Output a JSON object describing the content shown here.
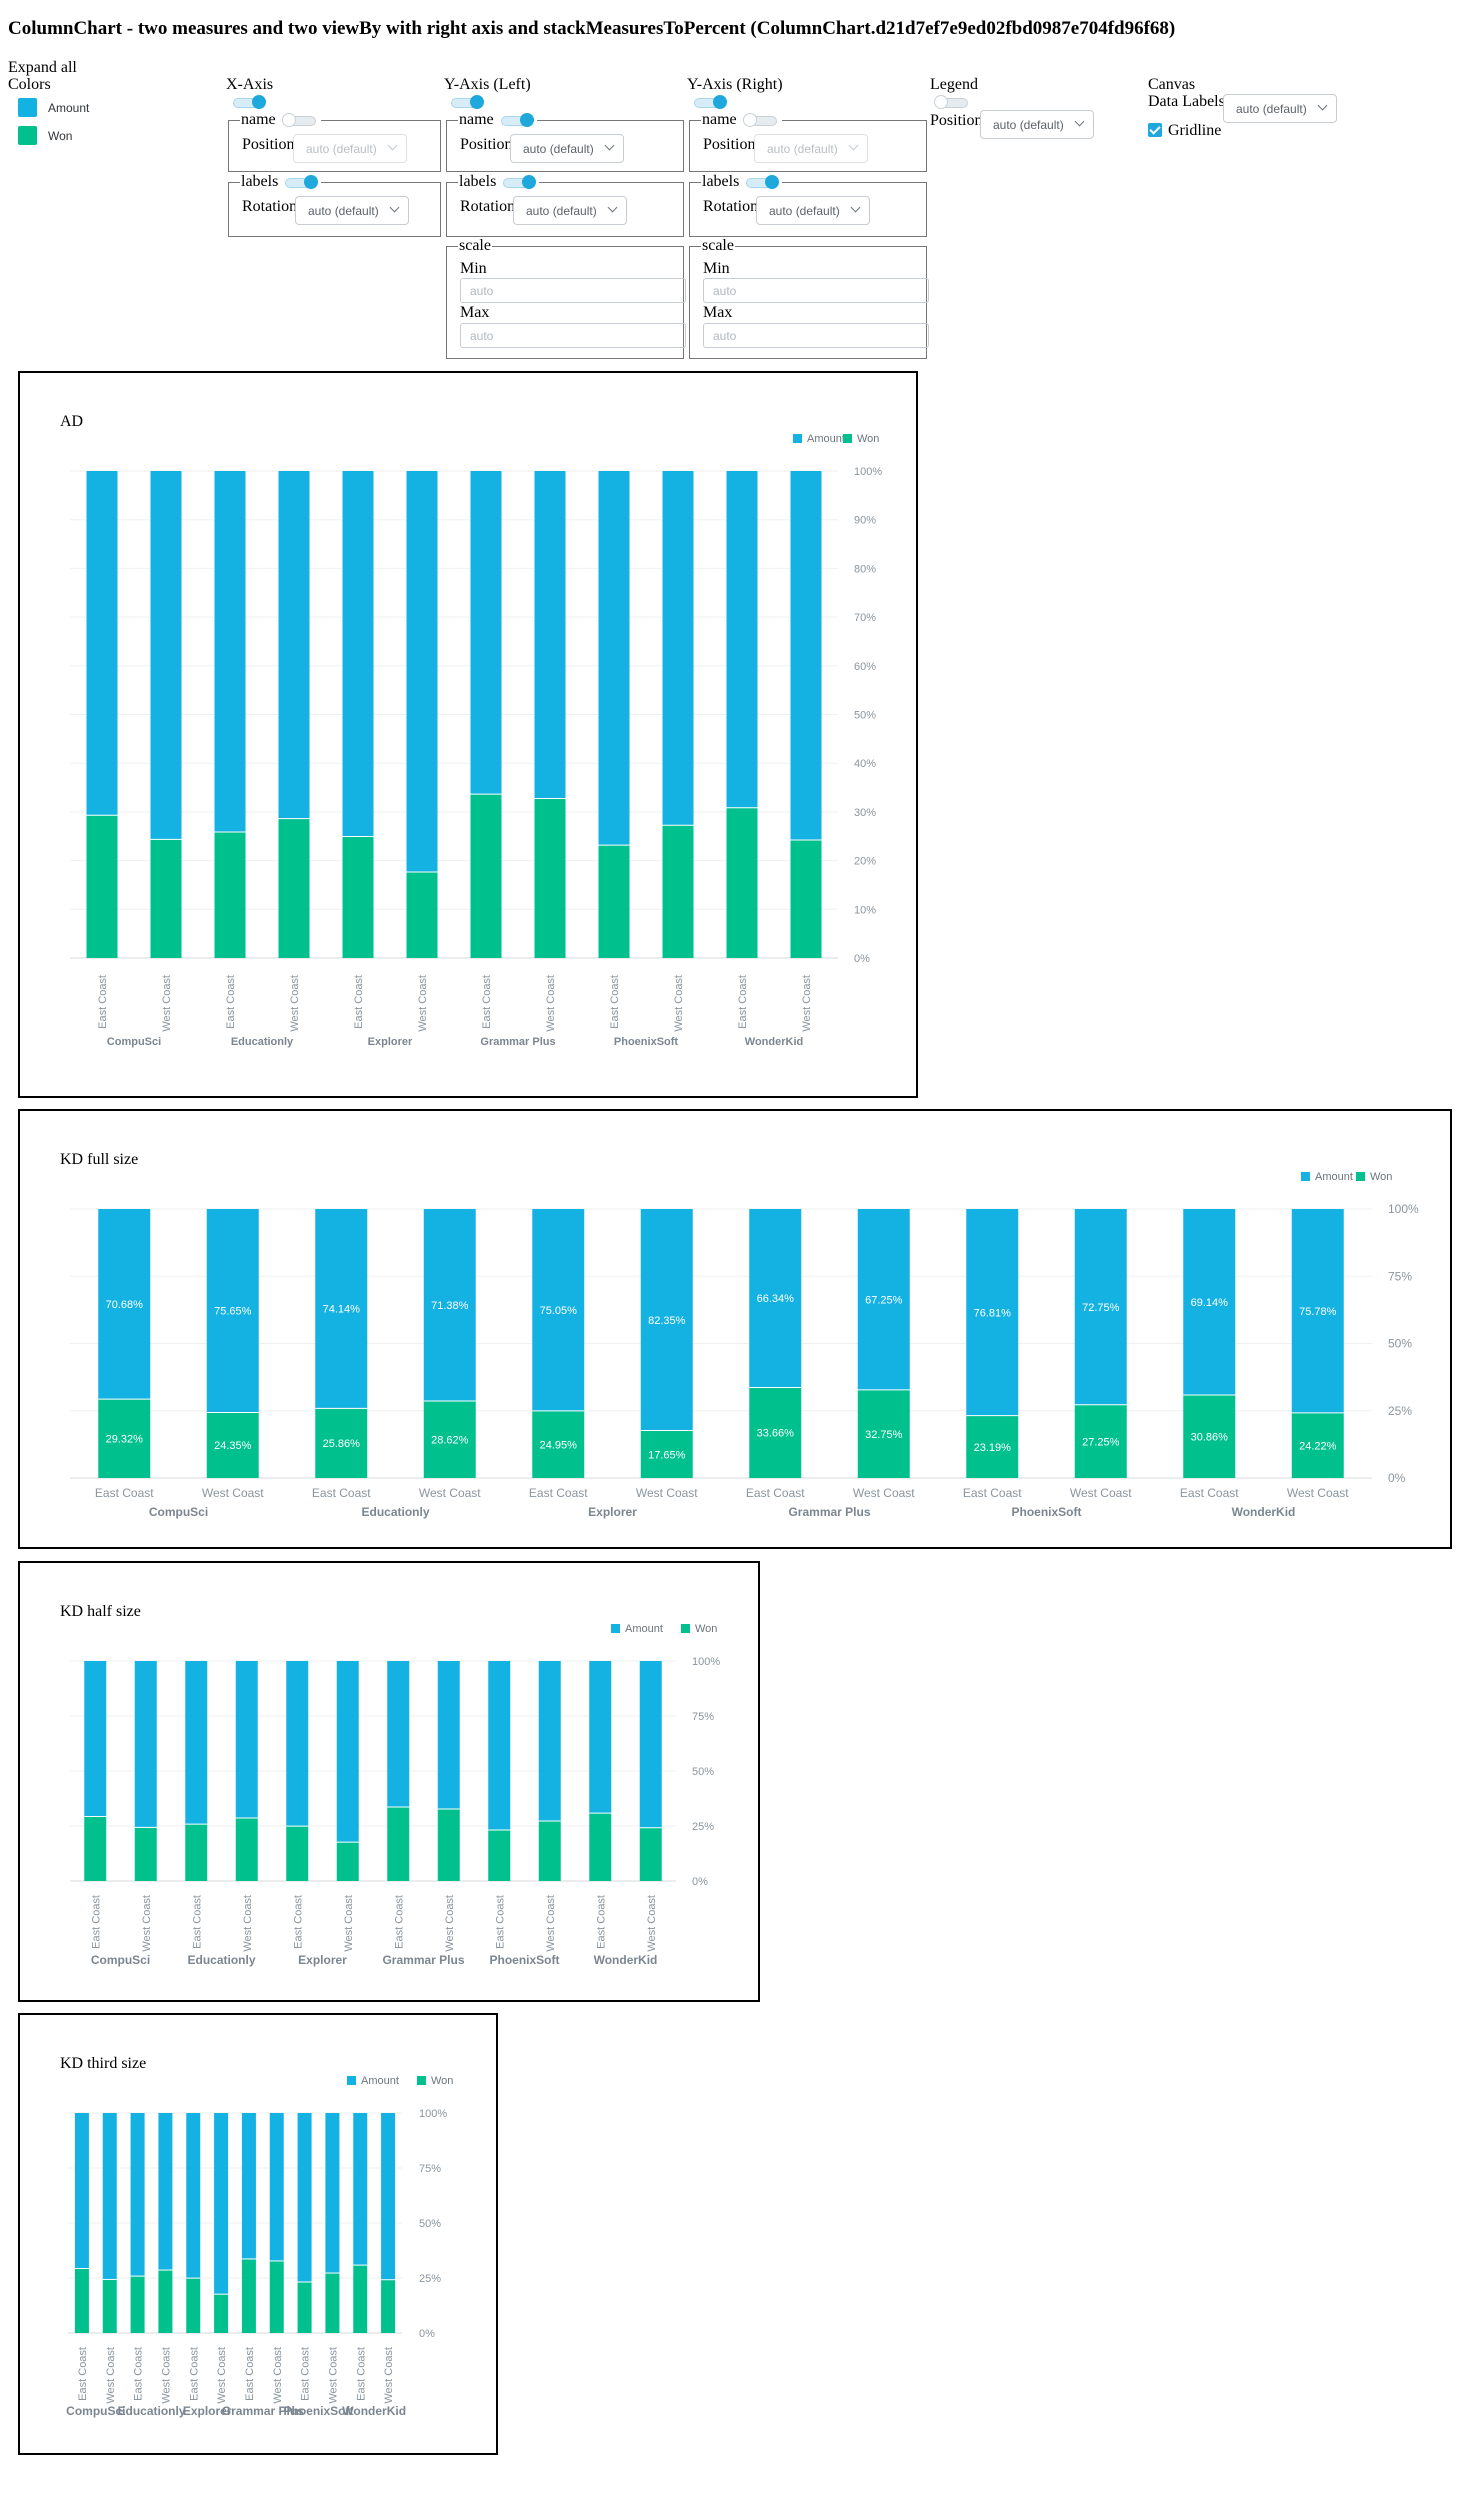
{
  "page": {
    "title": "ColumnChart - two measures and two viewBy with right axis and stackMeasuresToPercent (ColumnChart.d21d7ef7e9ed02fbd0987e704fd96f68)"
  },
  "controls": {
    "expand_all": "Expand all",
    "colors": {
      "label": "Colors",
      "items": [
        {
          "label": "Amount",
          "color": "#14b2e2"
        },
        {
          "label": "Won",
          "color": "#00c18d"
        }
      ]
    },
    "x_axis": {
      "label": "X-Axis",
      "toggle_on": true,
      "name": {
        "legend": "name",
        "toggle_on": false,
        "position_label": "Position",
        "position_value": "auto (default)",
        "disabled": true
      },
      "labels": {
        "legend": "labels",
        "toggle_on": true,
        "rotation_label": "Rotation",
        "rotation_value": "auto (default)"
      }
    },
    "y_axis_left": {
      "label": "Y-Axis (Left)",
      "toggle_on": true,
      "name": {
        "legend": "name",
        "toggle_on": true,
        "position_label": "Position",
        "position_value": "auto (default)"
      },
      "labels": {
        "legend": "labels",
        "toggle_on": true,
        "rotation_label": "Rotation",
        "rotation_value": "auto (default)"
      },
      "scale": {
        "legend": "scale",
        "min_label": "Min",
        "min_placeholder": "auto",
        "max_label": "Max",
        "max_placeholder": "auto"
      }
    },
    "y_axis_right": {
      "label": "Y-Axis (Right)",
      "toggle_on": true,
      "name": {
        "legend": "name",
        "toggle_on": false,
        "position_label": "Position",
        "position_value": "auto (default)",
        "disabled": true
      },
      "labels": {
        "legend": "labels",
        "toggle_on": true,
        "rotation_label": "Rotation",
        "rotation_value": "auto (default)"
      },
      "scale": {
        "legend": "scale",
        "min_label": "Min",
        "min_placeholder": "auto",
        "max_label": "Max",
        "max_placeholder": "auto"
      }
    },
    "legend": {
      "label": "Legend",
      "toggle_on": false,
      "position_label": "Position",
      "position_value": "auto (default)"
    },
    "canvas": {
      "label": "Canvas",
      "data_labels_label": "Data Labels",
      "data_labels_value": "auto (default)",
      "gridline_label": "Gridline",
      "gridline_checked": true
    }
  },
  "chart_data": [
    {
      "type": "bar",
      "title": "AD",
      "stacked_percent": true,
      "groups": [
        "CompuSci",
        "Educationly",
        "Explorer",
        "Grammar Plus",
        "PhoenixSoft",
        "WonderKid"
      ],
      "categories": [
        "East Coast",
        "West Coast",
        "East Coast",
        "West Coast",
        "East Coast",
        "West Coast",
        "East Coast",
        "West Coast",
        "East Coast",
        "West Coast",
        "East Coast",
        "West Coast"
      ],
      "series": [
        {
          "name": "Amount",
          "color": "#14b2e2",
          "values": [
            70.68,
            75.65,
            74.14,
            71.38,
            75.05,
            82.35,
            66.34,
            67.25,
            76.81,
            72.75,
            69.14,
            75.78
          ]
        },
        {
          "name": "Won",
          "color": "#00c18d",
          "values": [
            29.32,
            24.35,
            25.86,
            28.62,
            24.95,
            17.65,
            33.66,
            32.75,
            23.19,
            27.25,
            30.86,
            24.22
          ]
        }
      ],
      "y_axis": "right",
      "ylim": [
        0,
        100
      ],
      "yticks": [
        "0%",
        "10%",
        "20%",
        "30%",
        "40%",
        "50%",
        "60%",
        "70%",
        "80%",
        "90%",
        "100%"
      ],
      "xlabel_rotation": "vertical",
      "legend_position": "top-right",
      "grid": true,
      "data_labels": false
    },
    {
      "type": "bar",
      "title": "KD full size",
      "stacked_percent": true,
      "groups": [
        "CompuSci",
        "Educationly",
        "Explorer",
        "Grammar Plus",
        "PhoenixSoft",
        "WonderKid"
      ],
      "categories": [
        "East Coast",
        "West Coast",
        "East Coast",
        "West Coast",
        "East Coast",
        "West Coast",
        "East Coast",
        "West Coast",
        "East Coast",
        "West Coast",
        "East Coast",
        "West Coast"
      ],
      "series": [
        {
          "name": "Amount",
          "color": "#14b2e2",
          "values": [
            70.68,
            75.65,
            74.14,
            71.38,
            75.05,
            82.35,
            66.34,
            67.25,
            76.81,
            72.75,
            69.14,
            75.78
          ],
          "labels": [
            "70.68%",
            "75.65%",
            "74.14%",
            "71.38%",
            "75.05%",
            "82.35%",
            "66.34%",
            "67.25%",
            "76.81%",
            "72.75%",
            "69.14%",
            "75.78%"
          ]
        },
        {
          "name": "Won",
          "color": "#00c18d",
          "values": [
            29.32,
            24.35,
            25.86,
            28.62,
            24.95,
            17.65,
            33.66,
            32.75,
            23.19,
            27.25,
            30.86,
            24.22
          ],
          "labels": [
            "29.32%",
            "24.35%",
            "25.86%",
            "28.62%",
            "24.95%",
            "17.65%",
            "33.66%",
            "32.75%",
            "23.19%",
            "27.25%",
            "30.86%",
            "24.22%"
          ]
        }
      ],
      "y_axis": "right",
      "ylim": [
        0,
        100
      ],
      "yticks": [
        "0%",
        "25%",
        "50%",
        "75%",
        "100%"
      ],
      "xlabel_rotation": "horizontal",
      "legend_position": "top-right",
      "grid": true,
      "data_labels": true
    },
    {
      "type": "bar",
      "title": "KD half size",
      "stacked_percent": true,
      "groups": [
        "CompuSci",
        "Educationly",
        "Explorer",
        "Grammar Plus",
        "PhoenixSoft",
        "WonderKid"
      ],
      "categories": [
        "East Coast",
        "West Coast",
        "East Coast",
        "West Coast",
        "East Coast",
        "West Coast",
        "East Coast",
        "West Coast",
        "East Coast",
        "West Coast",
        "East Coast",
        "West Coast"
      ],
      "series": [
        {
          "name": "Amount",
          "color": "#14b2e2",
          "values": [
            70.68,
            75.65,
            74.14,
            71.38,
            75.05,
            82.35,
            66.34,
            67.25,
            76.81,
            72.75,
            69.14,
            75.78
          ]
        },
        {
          "name": "Won",
          "color": "#00c18d",
          "values": [
            29.32,
            24.35,
            25.86,
            28.62,
            24.95,
            17.65,
            33.66,
            32.75,
            23.19,
            27.25,
            30.86,
            24.22
          ]
        }
      ],
      "y_axis": "right",
      "ylim": [
        0,
        100
      ],
      "yticks": [
        "0%",
        "25%",
        "50%",
        "75%",
        "100%"
      ],
      "xlabel_rotation": "vertical",
      "legend_position": "top-right",
      "grid": true,
      "data_labels": false
    },
    {
      "type": "bar",
      "title": "KD third size",
      "stacked_percent": true,
      "groups": [
        "CompuSci",
        "Educationly",
        "Explorer",
        "Grammar Plus",
        "PhoenixSoft",
        "WonderKid"
      ],
      "categories": [
        "East Coast",
        "West Coast",
        "East Coast",
        "West Coast",
        "East Coast",
        "West Coast",
        "East Coast",
        "West Coast",
        "East Coast",
        "West Coast",
        "East Coast",
        "West Coast"
      ],
      "series": [
        {
          "name": "Amount",
          "color": "#14b2e2",
          "values": [
            70.68,
            75.65,
            74.14,
            71.38,
            75.05,
            82.35,
            66.34,
            67.25,
            76.81,
            72.75,
            69.14,
            75.78
          ]
        },
        {
          "name": "Won",
          "color": "#00c18d",
          "values": [
            29.32,
            24.35,
            25.86,
            28.62,
            24.95,
            17.65,
            33.66,
            32.75,
            23.19,
            27.25,
            30.86,
            24.22
          ]
        }
      ],
      "y_axis": "right",
      "ylim": [
        0,
        100
      ],
      "yticks": [
        "0%",
        "25%",
        "50%",
        "75%",
        "100%"
      ],
      "xlabel_rotation": "vertical",
      "legend_position": "top-right",
      "grid": true,
      "data_labels": false
    }
  ]
}
